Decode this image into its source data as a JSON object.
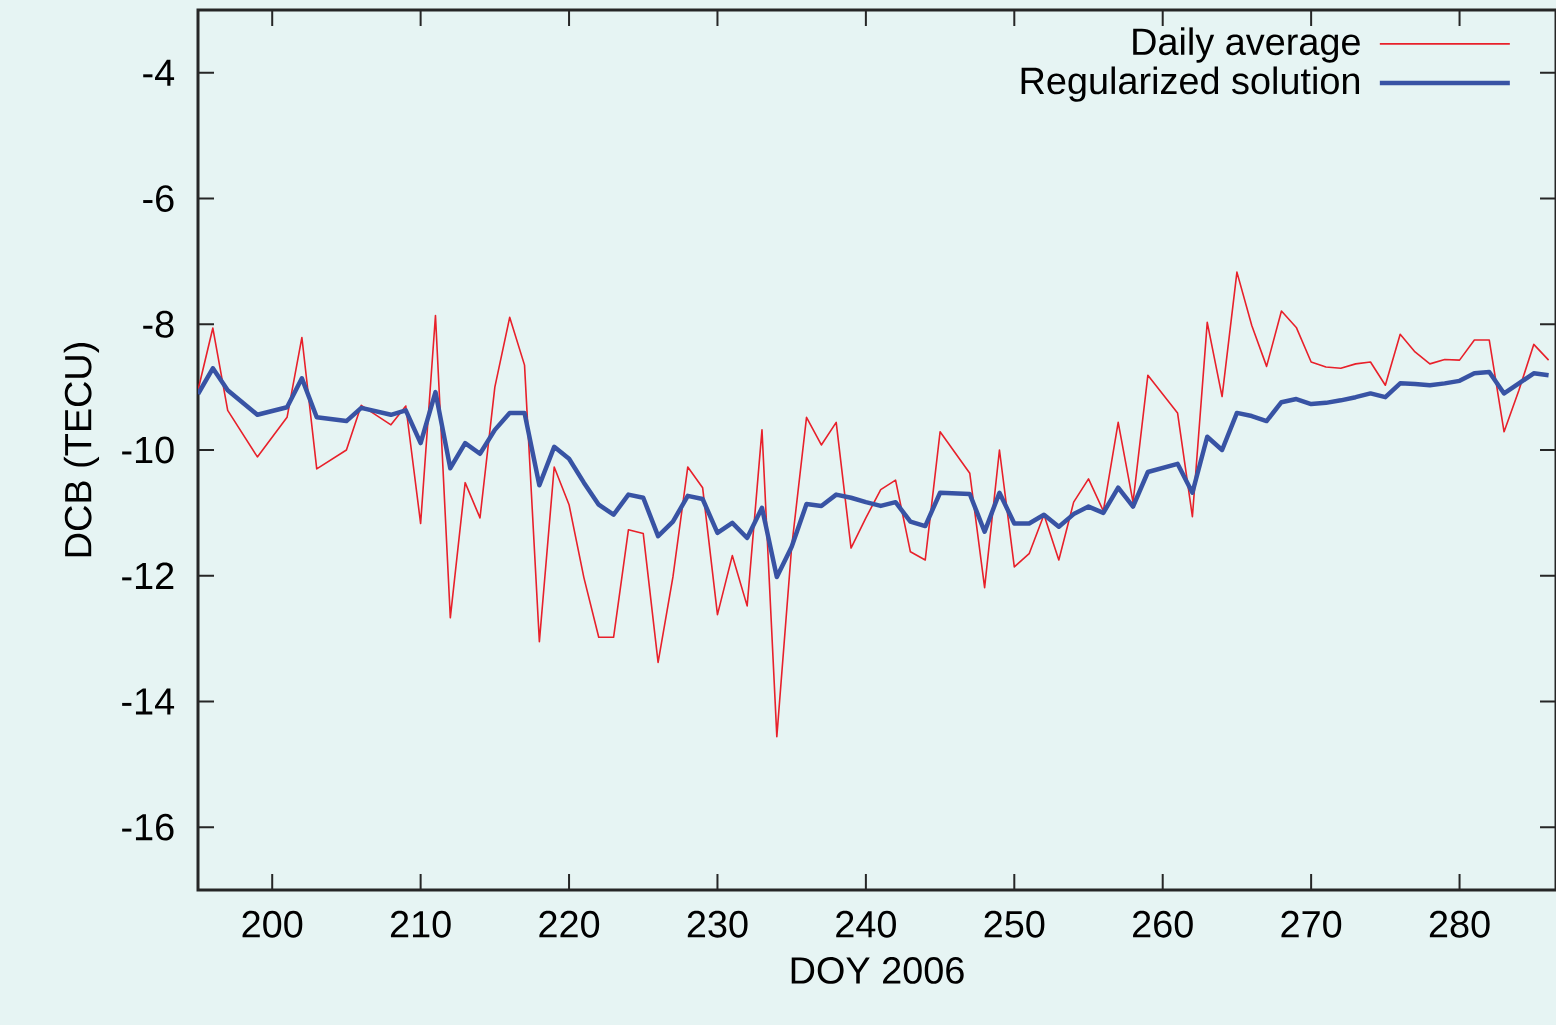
{
  "chart_data": {
    "type": "line",
    "xlabel": "DOY 2006",
    "ylabel": "DCB (TECU)",
    "x": [
      195,
      196,
      197,
      199,
      201,
      202,
      203,
      205,
      206,
      208,
      209,
      210,
      211,
      212,
      213,
      214,
      215,
      216,
      217,
      218,
      219,
      220,
      221,
      222,
      223,
      224,
      225,
      226,
      227,
      228,
      229,
      230,
      231,
      232,
      233,
      234,
      235,
      236,
      237,
      238,
      239,
      240,
      241,
      242,
      243,
      244,
      245,
      247,
      248,
      249,
      250,
      251,
      252,
      253,
      254,
      255,
      256,
      257,
      258,
      259,
      261,
      262,
      263,
      264,
      265,
      266,
      267,
      268,
      269,
      270,
      271,
      272,
      273,
      274,
      275,
      276,
      277,
      278,
      279,
      280,
      281,
      282,
      283,
      284,
      285,
      286
    ],
    "series": [
      {
        "name": "Daily average",
        "color": "#e8202a",
        "values": [
          -9.05,
          -8.06,
          -9.37,
          -10.11,
          -9.48,
          -8.21,
          -10.3,
          -10.0,
          -9.29,
          -9.6,
          -9.3,
          -11.17,
          -7.86,
          -12.67,
          -10.52,
          -11.08,
          -9.0,
          -7.89,
          -8.65,
          -13.05,
          -10.27,
          -10.87,
          -12.03,
          -12.98,
          -12.98,
          -11.27,
          -11.33,
          -13.38,
          -12.02,
          -10.27,
          -10.6,
          -12.62,
          -11.68,
          -12.48,
          -9.68,
          -14.56,
          -11.54,
          -9.48,
          -9.92,
          -9.56,
          -11.56,
          -11.08,
          -10.63,
          -10.48,
          -11.62,
          -11.75,
          -9.71,
          -10.37,
          -12.19,
          -10.0,
          -11.86,
          -11.65,
          -11.03,
          -11.75,
          -10.83,
          -10.46,
          -10.97,
          -9.56,
          -10.83,
          -8.81,
          -9.41,
          -11.06,
          -7.97,
          -9.15,
          -7.17,
          -8.02,
          -8.67,
          -7.79,
          -8.05,
          -8.6,
          -8.68,
          -8.7,
          -8.63,
          -8.6,
          -8.97,
          -8.16,
          -8.44,
          -8.63,
          -8.56,
          -8.57,
          -8.25,
          -8.25,
          -9.71,
          -9.05,
          -8.32,
          -8.57
        ]
      },
      {
        "name": "Regularized solution",
        "color": "#3853a4",
        "values": [
          -9.11,
          -8.7,
          -9.05,
          -9.44,
          -9.32,
          -8.86,
          -9.48,
          -9.54,
          -9.33,
          -9.44,
          -9.37,
          -9.89,
          -9.08,
          -10.29,
          -9.89,
          -10.06,
          -9.68,
          -9.41,
          -9.41,
          -10.56,
          -9.95,
          -10.14,
          -10.52,
          -10.87,
          -11.03,
          -10.71,
          -10.76,
          -11.37,
          -11.14,
          -10.73,
          -10.78,
          -11.32,
          -11.16,
          -11.4,
          -10.92,
          -12.02,
          -11.54,
          -10.86,
          -10.89,
          -10.71,
          -10.76,
          -10.83,
          -10.89,
          -10.83,
          -11.14,
          -11.21,
          -10.68,
          -10.7,
          -11.3,
          -10.68,
          -11.17,
          -11.17,
          -11.03,
          -11.22,
          -11.02,
          -10.9,
          -11.0,
          -10.6,
          -10.9,
          -10.35,
          -10.22,
          -10.68,
          -9.79,
          -10.0,
          -9.41,
          -9.46,
          -9.54,
          -9.24,
          -9.19,
          -9.27,
          -9.25,
          -9.21,
          -9.16,
          -9.1,
          -9.16,
          -8.94,
          -8.95,
          -8.97,
          -8.94,
          -8.9,
          -8.78,
          -8.76,
          -9.1,
          -8.94,
          -8.78,
          -8.81
        ]
      }
    ],
    "xlim": [
      195,
      286.5
    ],
    "ylim": [
      -17,
      -3
    ],
    "xticks": [
      200,
      210,
      220,
      230,
      240,
      250,
      260,
      270,
      280
    ],
    "yticks": [
      -16,
      -14,
      -12,
      -10,
      -8,
      -6,
      -4
    ],
    "legend": "top right",
    "grid": false,
    "line_style": "solid"
  }
}
